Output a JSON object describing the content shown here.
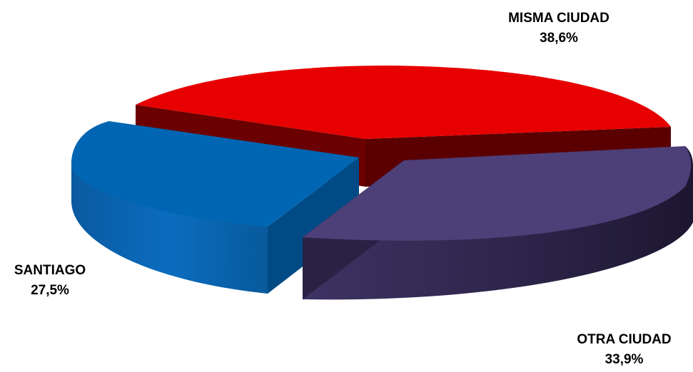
{
  "chart_data": {
    "type": "pie",
    "style": "3d-exploded",
    "title": "",
    "slices": [
      {
        "label": "MISMA CIUDAD",
        "value": 38.6,
        "value_label": "38,6%",
        "color": "#e60000",
        "side_color": "#6b0000"
      },
      {
        "label": "OTRA CIUDAD",
        "value": 33.9,
        "value_label": "33,9%",
        "color": "#4d3f78",
        "side_color": "#2a2245"
      },
      {
        "label": "SANTIAGO",
        "value": 27.5,
        "value_label": "27,5%",
        "color": "#0066b3",
        "side_color": "#004a85"
      }
    ]
  }
}
